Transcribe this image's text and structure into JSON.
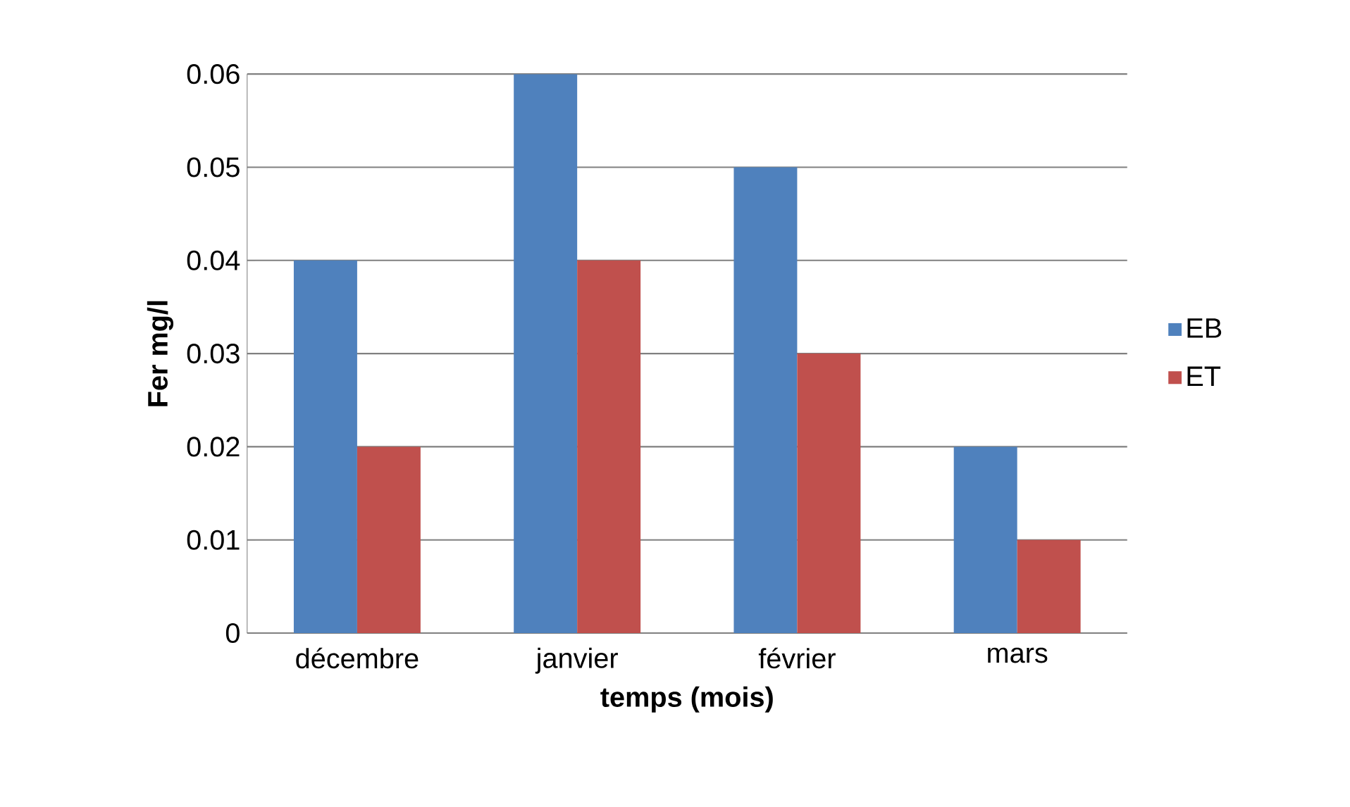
{
  "chart_data": {
    "type": "bar",
    "xlabel": "temps (mois)",
    "ylabel": "Fer mg/l",
    "categories": [
      "décembre",
      "janvier",
      "février",
      "mars"
    ],
    "series": [
      {
        "name": "EB",
        "color": "#4f81bd",
        "values": [
          0.04,
          0.06,
          0.05,
          0.02
        ]
      },
      {
        "name": "ET",
        "color": "#c0504d",
        "values": [
          0.02,
          0.04,
          0.03,
          0.01
        ]
      }
    ],
    "ylim": [
      0,
      0.06
    ],
    "yticks": [
      0,
      0.01,
      0.02,
      0.03,
      0.04,
      0.05,
      0.06
    ],
    "grid": "y",
    "legend": "right"
  }
}
